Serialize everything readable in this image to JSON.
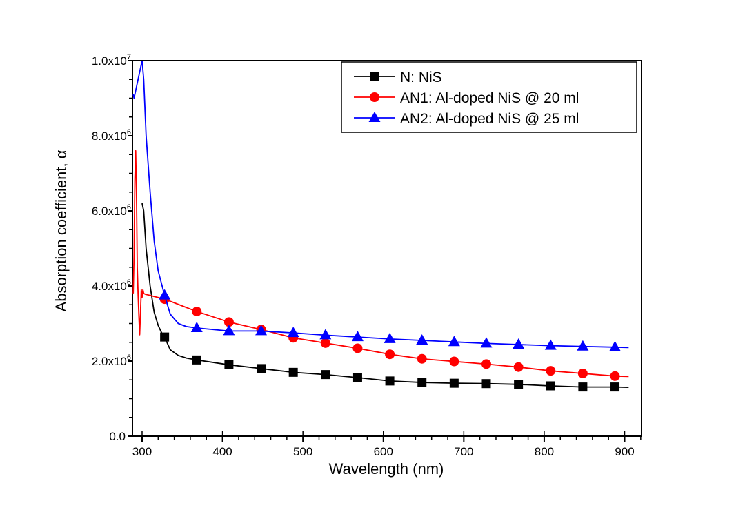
{
  "chart_data": {
    "type": "line",
    "title": "",
    "xlabel": "Wavelength (nm)",
    "ylabel": "Absorption coefficient, α",
    "xlim": [
      288,
      921
    ],
    "ylim": [
      0,
      10000000
    ],
    "x_ticks": [
      300,
      400,
      500,
      600,
      700,
      800,
      900
    ],
    "x_tick_labels": [
      "300",
      "400",
      "500",
      "600",
      "700",
      "800",
      "900"
    ],
    "y_ticks": [
      0,
      2000000,
      4000000,
      6000000,
      8000000,
      10000000
    ],
    "y_tick_labels": [
      {
        "mantissa": "0.0",
        "exp": ""
      },
      {
        "mantissa": "2.0x10",
        "exp": "6"
      },
      {
        "mantissa": "4.0x10",
        "exp": "6"
      },
      {
        "mantissa": "6.0x10",
        "exp": "6"
      },
      {
        "mantissa": "8.0x10",
        "exp": "6"
      },
      {
        "mantissa": "1.0x10",
        "exp": "7"
      }
    ],
    "grid": false,
    "legend_position": "top-right",
    "marker_x": [
      328,
      368,
      408,
      448,
      488,
      528,
      568,
      608,
      648,
      688,
      728,
      768,
      808,
      848,
      888
    ],
    "series": [
      {
        "name": "N: NiS",
        "color": "#000000",
        "marker": "square",
        "values": [
          2640000,
          2030000,
          1900000,
          1800000,
          1700000,
          1640000,
          1560000,
          1470000,
          1430000,
          1410000,
          1400000,
          1380000,
          1340000,
          1310000,
          1310000
        ],
        "curve": [
          [
            300,
            6200000
          ],
          [
            302,
            6000000
          ],
          [
            305,
            5000000
          ],
          [
            310,
            4000000
          ],
          [
            315,
            3300000
          ],
          [
            320,
            2950000
          ],
          [
            325,
            2720000
          ],
          [
            328,
            2640000
          ],
          [
            335,
            2300000
          ],
          [
            345,
            2150000
          ],
          [
            355,
            2080000
          ],
          [
            368,
            2030000
          ]
        ]
      },
      {
        "name": "AN1: Al-doped NiS @ 20 ml",
        "color": "#ff0000",
        "marker": "circle",
        "values": [
          3650000,
          3320000,
          3040000,
          2840000,
          2620000,
          2480000,
          2340000,
          2180000,
          2060000,
          1990000,
          1920000,
          1840000,
          1740000,
          1670000,
          1600000
        ],
        "curve": [
          [
            289,
            3800000
          ],
          [
            290,
            4800000
          ],
          [
            291,
            6800000
          ],
          [
            292,
            7600000
          ],
          [
            293,
            6500000
          ],
          [
            294,
            4500000
          ],
          [
            295,
            3800000
          ],
          [
            296,
            3200000
          ],
          [
            297,
            2700000
          ],
          [
            298,
            3300000
          ],
          [
            299,
            3900000
          ],
          [
            300,
            3700000
          ],
          [
            301,
            3900000
          ],
          [
            302,
            3800000
          ],
          [
            304,
            3780000
          ],
          [
            315,
            3720000
          ],
          [
            328,
            3650000
          ]
        ]
      },
      {
        "name": "AN2: Al-doped NiS @ 25 ml",
        "color": "#0000ff",
        "marker": "triangle",
        "values": [
          3750000,
          2880000,
          2800000,
          2800000,
          2750000,
          2690000,
          2640000,
          2590000,
          2550000,
          2510000,
          2470000,
          2440000,
          2410000,
          2390000,
          2370000
        ],
        "curve": [
          [
            289,
            9100000
          ],
          [
            290,
            9000000
          ],
          [
            300,
            10000000
          ],
          [
            302,
            9500000
          ],
          [
            305,
            8000000
          ],
          [
            310,
            6500000
          ],
          [
            315,
            5200000
          ],
          [
            320,
            4400000
          ],
          [
            328,
            3750000
          ],
          [
            335,
            3250000
          ],
          [
            345,
            3000000
          ],
          [
            355,
            2920000
          ],
          [
            368,
            2880000
          ]
        ]
      }
    ]
  }
}
